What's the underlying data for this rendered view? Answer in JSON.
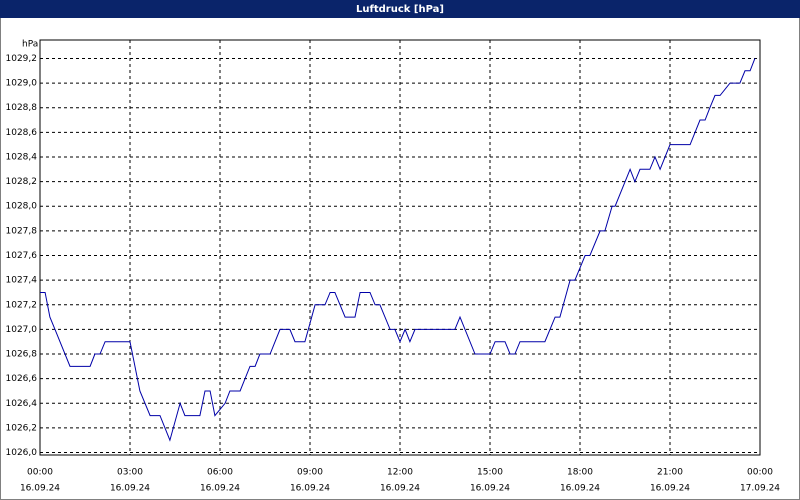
{
  "chart_data": {
    "type": "line",
    "title": "Luftdruck [hPa]",
    "ylabel": "hPa",
    "color": "#0000a8",
    "grid": true,
    "x": [
      0,
      0.17,
      0.33,
      0.5,
      1,
      1.67,
      1.83,
      2,
      2.17,
      3,
      3.33,
      3.67,
      4,
      4.33,
      4.67,
      4.83,
      5.33,
      5.5,
      5.67,
      5.83,
      6.17,
      6.33,
      6.67,
      7,
      7.17,
      7.33,
      7.67,
      8,
      8.33,
      8.5,
      8.83,
      9.17,
      9.5,
      9.67,
      9.83,
      10.17,
      10.5,
      10.67,
      11,
      11.17,
      11.33,
      11.67,
      11.83,
      12,
      12.17,
      12.33,
      12.5,
      13.83,
      14,
      14.5,
      15,
      15.17,
      15.5,
      15.67,
      15.83,
      16,
      16.83,
      17.17,
      17.33,
      17.67,
      17.83,
      18.17,
      18.33,
      18.67,
      18.83,
      19.07,
      19.17,
      19.67,
      19.83,
      20,
      20.33,
      20.5,
      20.67,
      21,
      21.67,
      22,
      22.17,
      22.33,
      22.5,
      22.67,
      23,
      23.33,
      23.5,
      23.67,
      23.83
    ],
    "values": [
      1027.3,
      1027.3,
      1027.1,
      1027.0,
      1026.7,
      1026.7,
      1026.8,
      1026.8,
      1026.9,
      1026.9,
      1026.5,
      1026.3,
      1026.3,
      1026.1,
      1026.4,
      1026.3,
      1026.3,
      1026.5,
      1026.5,
      1026.3,
      1026.4,
      1026.5,
      1026.5,
      1026.7,
      1026.7,
      1026.8,
      1026.8,
      1027.0,
      1027.0,
      1026.9,
      1026.9,
      1027.2,
      1027.2,
      1027.3,
      1027.3,
      1027.1,
      1027.1,
      1027.3,
      1027.3,
      1027.2,
      1027.2,
      1027.0,
      1027.0,
      1026.9,
      1027.0,
      1026.9,
      1027.0,
      1027.0,
      1027.1,
      1026.8,
      1026.8,
      1026.9,
      1026.9,
      1026.8,
      1026.8,
      1026.9,
      1026.9,
      1027.1,
      1027.1,
      1027.4,
      1027.4,
      1027.6,
      1027.6,
      1027.8,
      1027.8,
      1028.0,
      1028.0,
      1028.3,
      1028.2,
      1028.3,
      1028.3,
      1028.4,
      1028.3,
      1028.5,
      1028.5,
      1028.7,
      1028.7,
      1028.8,
      1028.9,
      1028.9,
      1029.0,
      1029.0,
      1029.1,
      1029.1,
      1029.2
    ],
    "xlim": [
      0,
      24
    ],
    "xticks": [
      {
        "value": 0,
        "label": "00:00",
        "date": "16.09.24"
      },
      {
        "value": 3,
        "label": "03:00",
        "date": "16.09.24"
      },
      {
        "value": 6,
        "label": "06:00",
        "date": "16.09.24"
      },
      {
        "value": 9,
        "label": "09:00",
        "date": "16.09.24"
      },
      {
        "value": 12,
        "label": "12:00",
        "date": "16.09.24"
      },
      {
        "value": 15,
        "label": "15:00",
        "date": "16.09.24"
      },
      {
        "value": 18,
        "label": "18:00",
        "date": "16.09.24"
      },
      {
        "value": 21,
        "label": "21:00",
        "date": "16.09.24"
      },
      {
        "value": 24,
        "label": "00:00",
        "date": "17.09.24"
      }
    ],
    "ylim": [
      1025.98,
      1029.35
    ],
    "yticks": [
      {
        "value": 1026.0,
        "label": "1026,0"
      },
      {
        "value": 1026.2,
        "label": "1026,2"
      },
      {
        "value": 1026.4,
        "label": "1026,4"
      },
      {
        "value": 1026.6,
        "label": "1026,6"
      },
      {
        "value": 1026.8,
        "label": "1026,8"
      },
      {
        "value": 1027.0,
        "label": "1027,0"
      },
      {
        "value": 1027.2,
        "label": "1027,2"
      },
      {
        "value": 1027.4,
        "label": "1027,4"
      },
      {
        "value": 1027.6,
        "label": "1027,6"
      },
      {
        "value": 1027.8,
        "label": "1027,8"
      },
      {
        "value": 1028.0,
        "label": "1028,0"
      },
      {
        "value": 1028.2,
        "label": "1028,2"
      },
      {
        "value": 1028.4,
        "label": "1028,4"
      },
      {
        "value": 1028.6,
        "label": "1028,6"
      },
      {
        "value": 1028.8,
        "label": "1028,8"
      },
      {
        "value": 1029.0,
        "label": "1029,0"
      },
      {
        "value": 1029.2,
        "label": "1029,2"
      }
    ]
  }
}
